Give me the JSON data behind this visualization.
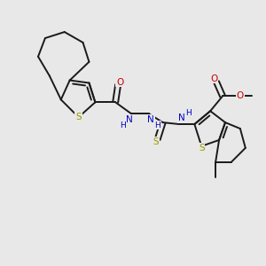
{
  "bg_color": "#e8e8e8",
  "bond_color": "#1a1a1a",
  "bond_width": 1.4,
  "S_color": "#999900",
  "N_color": "#0000cc",
  "O_color": "#cc0000",
  "font_size": 7.5,
  "figsize": [
    3.0,
    3.0
  ],
  "dpi": 100,
  "xlim": [
    0,
    300
  ],
  "ylim": [
    0,
    300
  ]
}
